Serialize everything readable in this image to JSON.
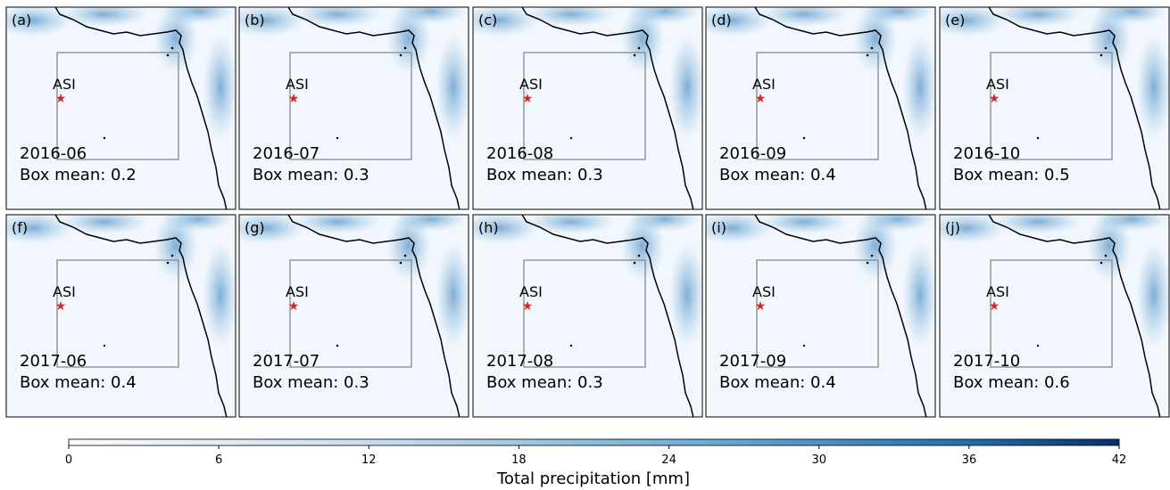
{
  "panels": [
    {
      "label": "(a)",
      "station": "ASI",
      "date": "2016-06",
      "box_mean": "Box mean: 0.2"
    },
    {
      "label": "(b)",
      "station": "ASI",
      "date": "2016-07",
      "box_mean": "Box mean: 0.3"
    },
    {
      "label": "(c)",
      "station": "ASI",
      "date": "2016-08",
      "box_mean": "Box mean: 0.3"
    },
    {
      "label": "(d)",
      "station": "ASI",
      "date": "2016-09",
      "box_mean": "Box mean: 0.4"
    },
    {
      "label": "(e)",
      "station": "ASI",
      "date": "2016-10",
      "box_mean": "Box mean: 0.5"
    },
    {
      "label": "(f)",
      "station": "ASI",
      "date": "2017-06",
      "box_mean": "Box mean: 0.4"
    },
    {
      "label": "(g)",
      "station": "ASI",
      "date": "2017-07",
      "box_mean": "Box mean: 0.3"
    },
    {
      "label": "(h)",
      "station": "ASI",
      "date": "2017-08",
      "box_mean": "Box mean: 0.3"
    },
    {
      "label": "(i)",
      "station": "ASI",
      "date": "2017-09",
      "box_mean": "Box mean: 0.4"
    },
    {
      "label": "(j)",
      "station": "ASI",
      "date": "2017-10",
      "box_mean": "Box mean: 0.6"
    }
  ],
  "colorbar": {
    "label": "Total precipitation [mm]",
    "range": [
      0,
      42
    ],
    "ticks": [
      0,
      6,
      12,
      18,
      24,
      30,
      36,
      42
    ]
  }
}
